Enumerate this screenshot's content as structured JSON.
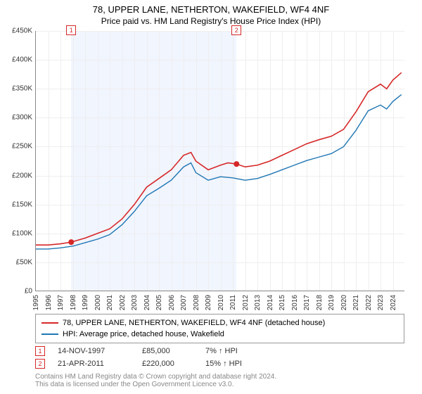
{
  "title": {
    "line1": "78, UPPER LANE, NETHERTON, WAKEFIELD, WF4 4NF",
    "line2": "Price paid vs. HM Land Registry's House Price Index (HPI)"
  },
  "chart": {
    "type": "line",
    "background_color": "#ffffff",
    "grid_color": "#eeeeee",
    "axis_color": "#888888",
    "y": {
      "min": 0,
      "max": 450000,
      "step": 50000,
      "labels": [
        "£0",
        "£50K",
        "£100K",
        "£150K",
        "£200K",
        "£250K",
        "£300K",
        "£350K",
        "£400K",
        "£450K"
      ],
      "label_fontsize": 10
    },
    "x": {
      "min": 1995,
      "max": 2025,
      "step": 1,
      "labels": [
        "1995",
        "1996",
        "1997",
        "1998",
        "1999",
        "2000",
        "2001",
        "2002",
        "2003",
        "2004",
        "2005",
        "2006",
        "2007",
        "2008",
        "2009",
        "2010",
        "2011",
        "2012",
        "2013",
        "2014",
        "2015",
        "2016",
        "2017",
        "2018",
        "2019",
        "2020",
        "2021",
        "2022",
        "2023",
        "2024",
        ""
      ],
      "label_fontsize": 10,
      "label_rotate": 90
    },
    "shaded_regions": [
      {
        "x_start": 1997.87,
        "x_end": 2011.3,
        "color": "#f1f5fe"
      }
    ],
    "series": [
      {
        "name": "price_paid",
        "label": "78, UPPER LANE, NETHERTON, WAKEFIELD, WF4 4NF (detached house)",
        "color": "#d62728",
        "line_width": 1.6,
        "points": [
          [
            1995,
            80000
          ],
          [
            1996,
            80000
          ],
          [
            1997,
            82000
          ],
          [
            1997.87,
            85000
          ],
          [
            1999,
            92000
          ],
          [
            2000,
            100000
          ],
          [
            2001,
            108000
          ],
          [
            2002,
            125000
          ],
          [
            2003,
            150000
          ],
          [
            2004,
            180000
          ],
          [
            2005,
            195000
          ],
          [
            2006,
            210000
          ],
          [
            2007,
            235000
          ],
          [
            2007.6,
            240000
          ],
          [
            2008,
            225000
          ],
          [
            2009,
            210000
          ],
          [
            2010,
            218000
          ],
          [
            2010.6,
            222000
          ],
          [
            2011.3,
            220000
          ],
          [
            2012,
            215000
          ],
          [
            2013,
            218000
          ],
          [
            2014,
            225000
          ],
          [
            2015,
            235000
          ],
          [
            2016,
            245000
          ],
          [
            2017,
            255000
          ],
          [
            2018,
            262000
          ],
          [
            2019,
            268000
          ],
          [
            2020,
            280000
          ],
          [
            2021,
            310000
          ],
          [
            2022,
            345000
          ],
          [
            2023,
            358000
          ],
          [
            2023.5,
            350000
          ],
          [
            2024,
            365000
          ],
          [
            2024.7,
            378000
          ]
        ],
        "markers": [
          {
            "x": 1997.87,
            "y": 85000,
            "radius": 4
          },
          {
            "x": 2011.3,
            "y": 220000,
            "radius": 4
          }
        ]
      },
      {
        "name": "hpi",
        "label": "HPI: Average price, detached house, Wakefield",
        "color": "#1f77b4",
        "line_width": 1.4,
        "points": [
          [
            1995,
            73000
          ],
          [
            1996,
            73000
          ],
          [
            1997,
            75000
          ],
          [
            1998,
            78000
          ],
          [
            1999,
            84000
          ],
          [
            2000,
            90000
          ],
          [
            2001,
            98000
          ],
          [
            2002,
            115000
          ],
          [
            2003,
            138000
          ],
          [
            2004,
            165000
          ],
          [
            2005,
            178000
          ],
          [
            2006,
            192000
          ],
          [
            2007,
            215000
          ],
          [
            2007.6,
            222000
          ],
          [
            2008,
            205000
          ],
          [
            2009,
            192000
          ],
          [
            2010,
            198000
          ],
          [
            2011,
            196000
          ],
          [
            2012,
            192000
          ],
          [
            2013,
            195000
          ],
          [
            2014,
            202000
          ],
          [
            2015,
            210000
          ],
          [
            2016,
            218000
          ],
          [
            2017,
            226000
          ],
          [
            2018,
            232000
          ],
          [
            2019,
            238000
          ],
          [
            2020,
            250000
          ],
          [
            2021,
            278000
          ],
          [
            2022,
            312000
          ],
          [
            2023,
            322000
          ],
          [
            2023.5,
            315000
          ],
          [
            2024,
            328000
          ],
          [
            2024.7,
            340000
          ]
        ]
      }
    ],
    "marker_boxes": [
      {
        "n": "1",
        "x": 1997.87,
        "y_top": -8,
        "border_color": "#d62728"
      },
      {
        "n": "2",
        "x": 2011.3,
        "y_top": -8,
        "border_color": "#d62728"
      }
    ]
  },
  "legend": {
    "border_color": "#999999",
    "rows": [
      {
        "color": "#d62728",
        "label": "78, UPPER LANE, NETHERTON, WAKEFIELD, WF4 4NF (detached house)"
      },
      {
        "color": "#1f77b4",
        "label": "HPI: Average price, detached house, Wakefield"
      }
    ]
  },
  "transactions": [
    {
      "n": "1",
      "date": "14-NOV-1997",
      "price": "£85,000",
      "delta": "7% ↑ HPI"
    },
    {
      "n": "2",
      "date": "21-APR-2011",
      "price": "£220,000",
      "delta": "15% ↑ HPI"
    }
  ],
  "footer": {
    "line1": "Contains HM Land Registry data © Crown copyright and database right 2024.",
    "line2": "This data is licensed under the Open Government Licence v3.0."
  }
}
